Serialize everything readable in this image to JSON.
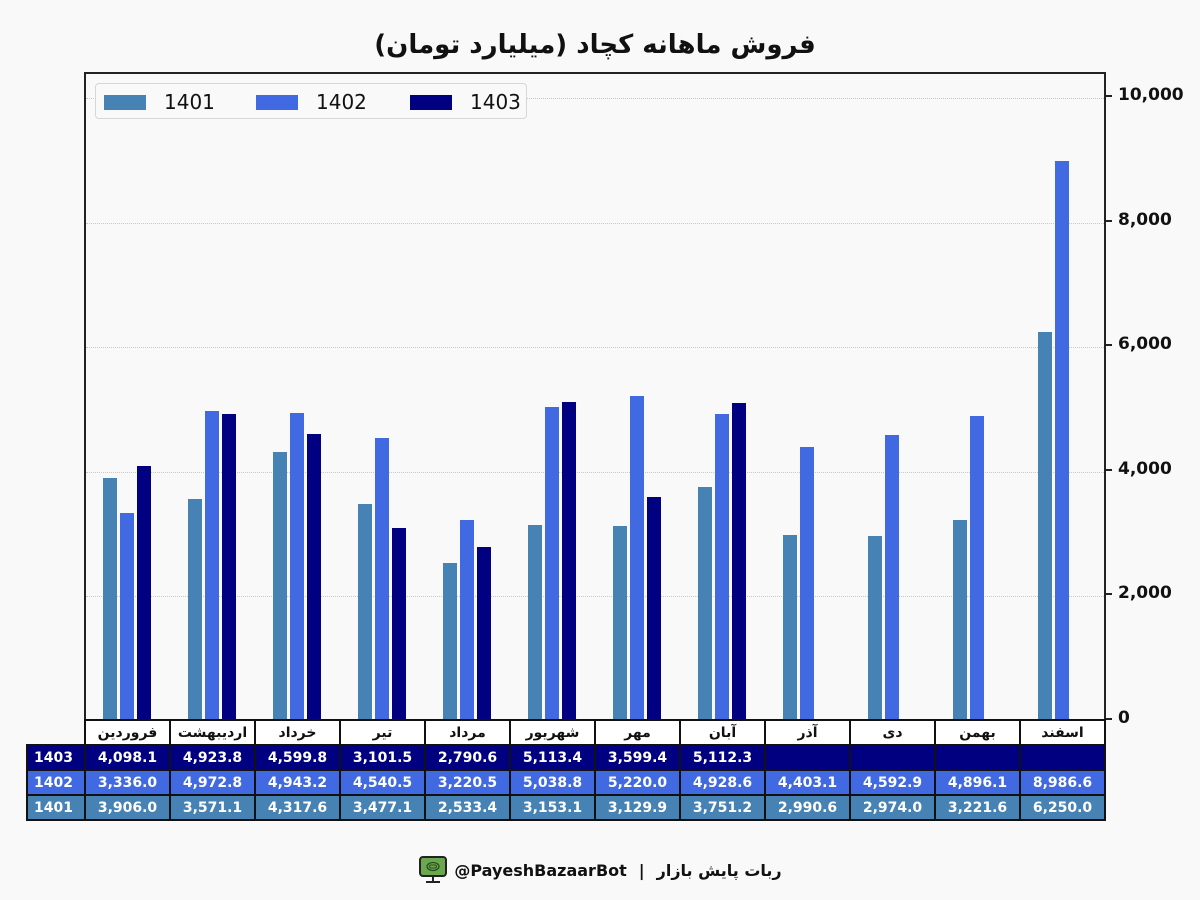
{
  "title": "فروش ماهانه کچاد (میلیارد تومان)",
  "legend": [
    {
      "label": "1401",
      "color": "#4682b4"
    },
    {
      "label": "1402",
      "color": "#4169e1"
    },
    {
      "label": "1403",
      "color": "#000080"
    }
  ],
  "y_axis": {
    "ticks": [
      {
        "value": 0,
        "label": "0"
      },
      {
        "value": 2000,
        "label": "2,000"
      },
      {
        "value": 4000,
        "label": "4,000"
      },
      {
        "value": 6000,
        "label": "6,000"
      },
      {
        "value": 8000,
        "label": "8,000"
      },
      {
        "value": 10000,
        "label": "10,000"
      }
    ]
  },
  "table": {
    "months": [
      "فروردین",
      "اردیبهشت",
      "خرداد",
      "تیر",
      "مرداد",
      "شهریور",
      "مهر",
      "آبان",
      "آذر",
      "دی",
      "بهمن",
      "اسفند"
    ],
    "rows": [
      {
        "label": "1403",
        "bg": "#000080",
        "values": [
          "4,098.1",
          "4,923.8",
          "4,599.8",
          "3,101.5",
          "2,790.6",
          "5,113.4",
          "3,599.4",
          "5,112.3",
          "",
          "",
          "",
          ""
        ]
      },
      {
        "label": "1402",
        "bg": "#4169e1",
        "values": [
          "3,336.0",
          "4,972.8",
          "4,943.2",
          "4,540.5",
          "3,220.5",
          "5,038.8",
          "5,220.0",
          "4,928.6",
          "4,403.1",
          "4,592.9",
          "4,896.1",
          "8,986.6"
        ]
      },
      {
        "label": "1401",
        "bg": "#4682b4",
        "values": [
          "3,906.0",
          "3,571.1",
          "4,317.6",
          "3,477.1",
          "2,533.4",
          "3,153.1",
          "3,129.9",
          "3,751.2",
          "2,990.6",
          "2,974.0",
          "3,221.6",
          "6,250.0"
        ]
      }
    ]
  },
  "footer": {
    "persian_label": "ربات پایش بازار",
    "separator": "|",
    "handle": "@PayeshBazaarBot",
    "icon": "monitor-bot-icon",
    "icon_color": "#6aa84f"
  },
  "chart_data": {
    "type": "bar",
    "title": "فروش ماهانه کچاد (میلیارد تومان)",
    "xlabel": "",
    "ylabel": "",
    "ylim": [
      0,
      10400
    ],
    "y_axis_position": "right",
    "grid": true,
    "legend_position": "upper left",
    "categories": [
      "فروردین",
      "اردیبهشت",
      "خرداد",
      "تیر",
      "مرداد",
      "شهریور",
      "مهر",
      "آبان",
      "آذر",
      "دی",
      "بهمن",
      "اسفند"
    ],
    "series": [
      {
        "name": "1401",
        "color": "#4682b4",
        "values": [
          3906.0,
          3571.1,
          4317.6,
          3477.1,
          2533.4,
          3153.1,
          3129.9,
          3751.2,
          2990.6,
          2974.0,
          3221.6,
          6250.0
        ]
      },
      {
        "name": "1402",
        "color": "#4169e1",
        "values": [
          3336.0,
          4972.8,
          4943.2,
          4540.5,
          3220.5,
          5038.8,
          5220.0,
          4928.6,
          4403.1,
          4592.9,
          4896.1,
          8986.6
        ]
      },
      {
        "name": "1403",
        "color": "#000080",
        "values": [
          4098.1,
          4923.8,
          4599.8,
          3101.5,
          2790.6,
          5113.4,
          3599.4,
          5112.3,
          null,
          null,
          null,
          null
        ]
      }
    ]
  }
}
